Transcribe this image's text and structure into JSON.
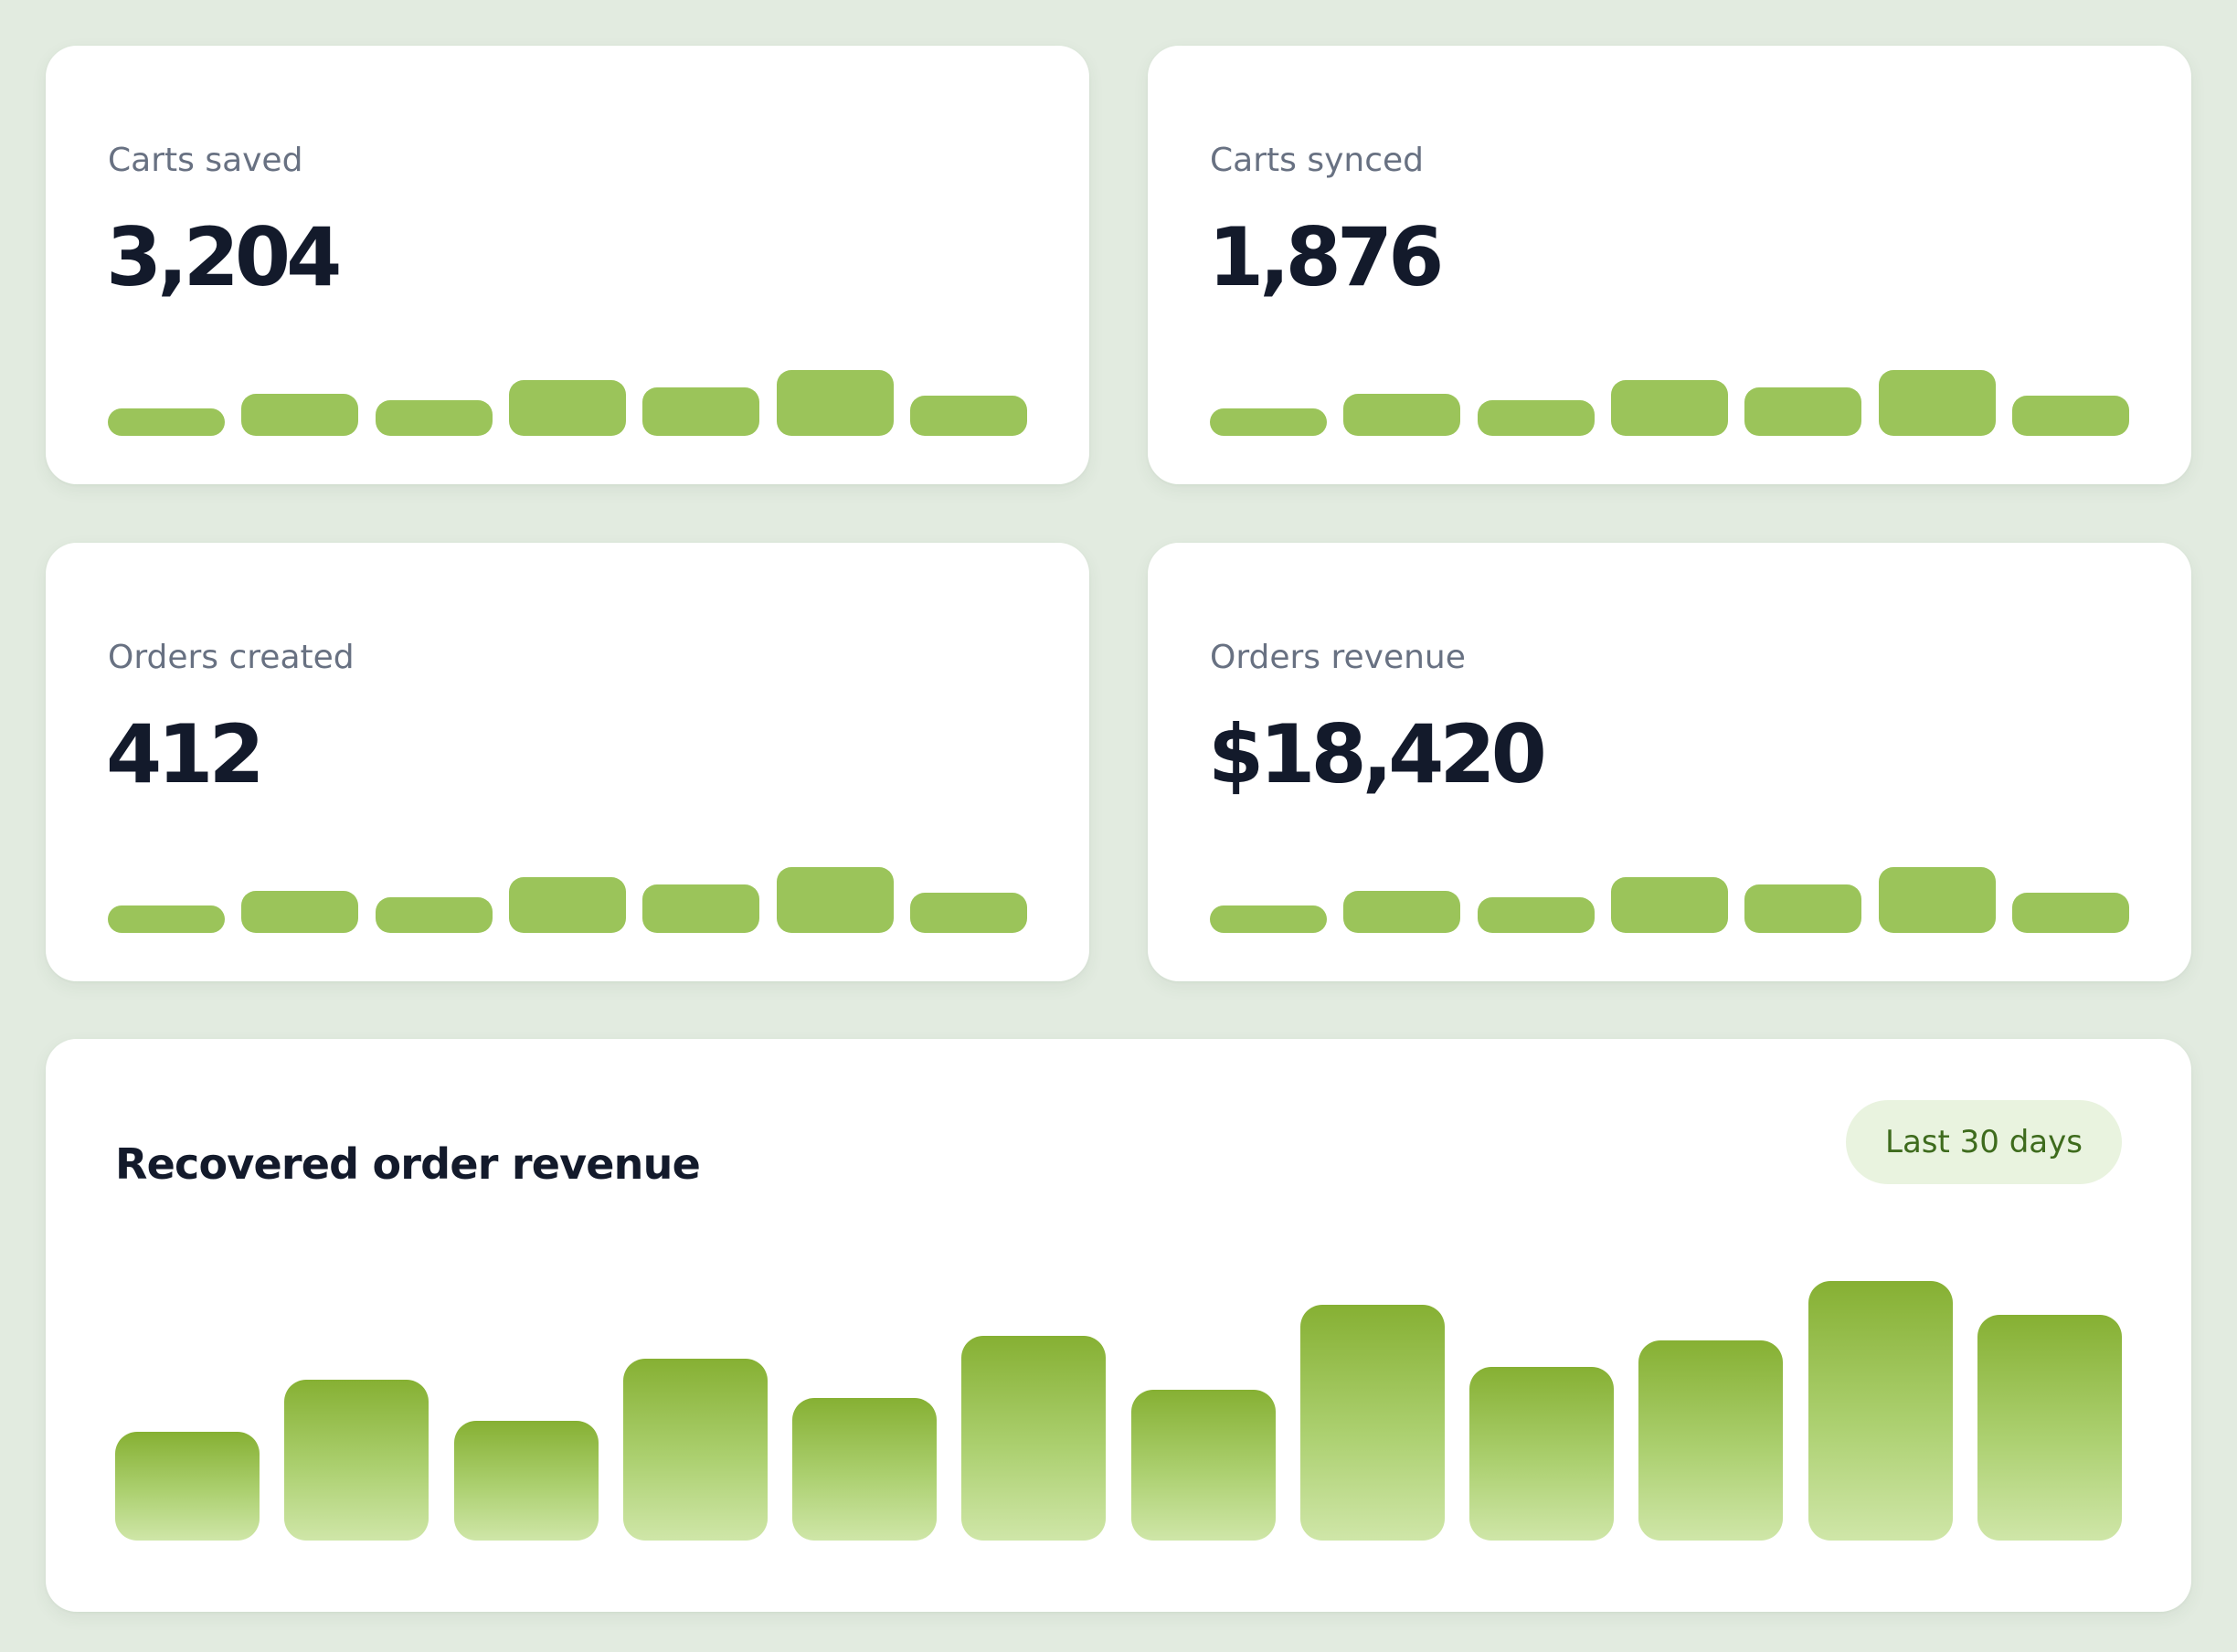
{
  "kpis": [
    {
      "label": "Carts saved",
      "value": "3,204",
      "trend": [
        0.27,
        0.42,
        0.35,
        0.55,
        0.48,
        0.65,
        0.4
      ]
    },
    {
      "label": "Carts synced",
      "value": "1,876",
      "trend": [
        0.27,
        0.42,
        0.35,
        0.55,
        0.48,
        0.65,
        0.4
      ]
    },
    {
      "label": "Orders created",
      "value": "412",
      "trend": [
        0.27,
        0.42,
        0.35,
        0.55,
        0.48,
        0.65,
        0.4
      ]
    },
    {
      "label": "Orders revenue",
      "value": "$18,420",
      "trend": [
        0.27,
        0.42,
        0.35,
        0.55,
        0.48,
        0.65,
        0.4
      ]
    }
  ],
  "revenue": {
    "title": "Recovered order revenue",
    "range_label": "Last 30 days"
  },
  "chart_data": {
    "type": "bar",
    "title": "Recovered order revenue",
    "values": [
      0.42,
      0.62,
      0.46,
      0.7,
      0.55,
      0.79,
      0.58,
      0.91,
      0.67,
      0.77,
      1.0,
      0.87
    ],
    "color": "#8db53a"
  },
  "colors": {
    "background": "#e2ebe0",
    "card": "#ffffff",
    "bar": "#9bc45a",
    "pill_bg": "#e9f3df",
    "pill_text": "#3e6b1d",
    "heading": "#131a2b",
    "label": "#687182"
  }
}
